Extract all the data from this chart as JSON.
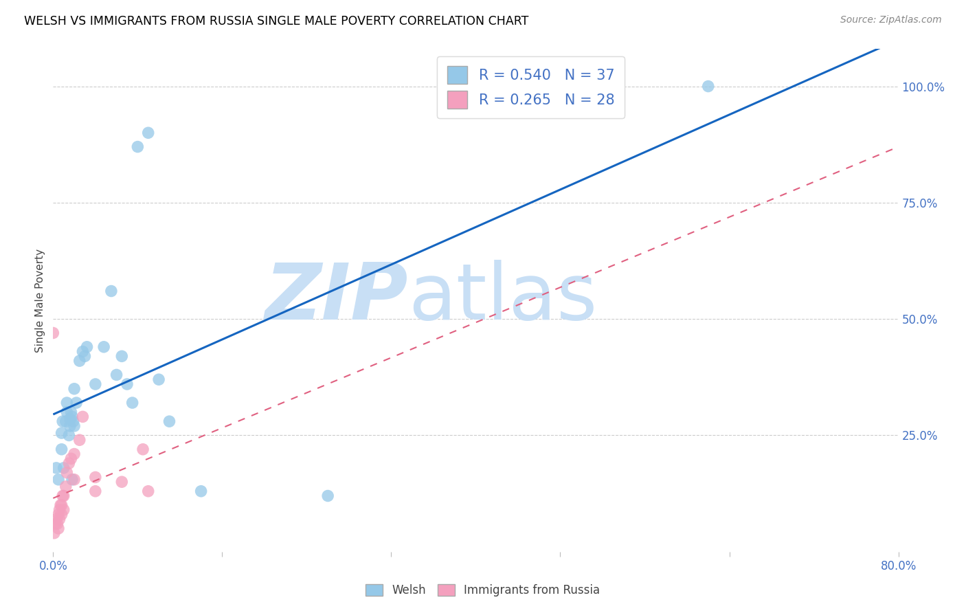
{
  "title": "WELSH VS IMMIGRANTS FROM RUSSIA SINGLE MALE POVERTY CORRELATION CHART",
  "source": "Source: ZipAtlas.com",
  "ylabel": "Single Male Poverty",
  "xlim": [
    0.0,
    0.8
  ],
  "ylim": [
    0.0,
    1.08
  ],
  "welsh_R": 0.54,
  "welsh_N": 37,
  "russia_R": 0.265,
  "russia_N": 28,
  "welsh_color": "#95c8e8",
  "russia_color": "#f4a0be",
  "welsh_line_color": "#1565C0",
  "russia_line_color": "#e06080",
  "watermark_zip": "ZIP",
  "watermark_atlas": "atlas",
  "watermark_color": "#c8dff5",
  "background_color": "#ffffff",
  "grid_color": "#cccccc",
  "label_color": "#4472c4",
  "welsh_line_x0": 0.0,
  "welsh_line_y0": 0.295,
  "welsh_line_x1": 0.8,
  "welsh_line_y1": 1.1,
  "russia_line_x0": 0.0,
  "russia_line_y0": 0.115,
  "russia_line_x1": 0.8,
  "russia_line_y1": 0.87,
  "welsh_x": [
    0.003,
    0.005,
    0.008,
    0.008,
    0.009,
    0.01,
    0.012,
    0.013,
    0.013,
    0.015,
    0.016,
    0.016,
    0.017,
    0.018,
    0.018,
    0.019,
    0.02,
    0.02,
    0.022,
    0.025,
    0.028,
    0.03,
    0.032,
    0.04,
    0.048,
    0.055,
    0.06,
    0.065,
    0.07,
    0.075,
    0.08,
    0.09,
    0.1,
    0.11,
    0.14,
    0.26,
    0.62
  ],
  "welsh_y": [
    0.18,
    0.155,
    0.22,
    0.255,
    0.28,
    0.18,
    0.28,
    0.3,
    0.32,
    0.25,
    0.27,
    0.285,
    0.3,
    0.155,
    0.29,
    0.28,
    0.27,
    0.35,
    0.32,
    0.41,
    0.43,
    0.42,
    0.44,
    0.36,
    0.44,
    0.56,
    0.38,
    0.42,
    0.36,
    0.32,
    0.87,
    0.9,
    0.37,
    0.28,
    0.13,
    0.12,
    1.0
  ],
  "russia_x": [
    0.0,
    0.001,
    0.002,
    0.003,
    0.004,
    0.005,
    0.005,
    0.006,
    0.006,
    0.007,
    0.008,
    0.008,
    0.009,
    0.01,
    0.01,
    0.012,
    0.013,
    0.015,
    0.017,
    0.02,
    0.02,
    0.025,
    0.028,
    0.04,
    0.04,
    0.065,
    0.085,
    0.09
  ],
  "russia_y": [
    0.47,
    0.04,
    0.06,
    0.07,
    0.06,
    0.05,
    0.08,
    0.07,
    0.09,
    0.1,
    0.08,
    0.1,
    0.12,
    0.09,
    0.12,
    0.14,
    0.17,
    0.19,
    0.2,
    0.155,
    0.21,
    0.24,
    0.29,
    0.13,
    0.16,
    0.15,
    0.22,
    0.13
  ]
}
